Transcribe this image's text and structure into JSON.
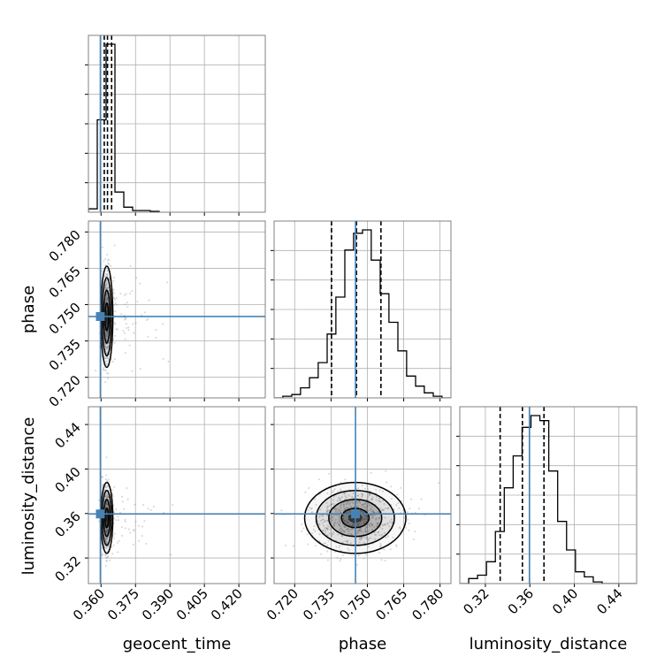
{
  "chart_data": {
    "type": "corner",
    "parameters": [
      "geocent_time",
      "phase",
      "luminosity_distance"
    ],
    "axis_labels": {
      "geocent_time": "geocent_time",
      "phase": "phase",
      "luminosity_distance": "luminosity_distance"
    },
    "ranges": {
      "geocent_time": [
        0.3545,
        0.4315
      ],
      "phase": [
        0.7115,
        0.7845
      ],
      "luminosity_distance": [
        0.297,
        0.456
      ]
    },
    "ticks": {
      "geocent_time": [
        0.36,
        0.375,
        0.39,
        0.405,
        0.42
      ],
      "phase": [
        0.72,
        0.735,
        0.75,
        0.765,
        0.78
      ],
      "luminosity_distance": [
        0.32,
        0.36,
        0.4,
        0.44
      ]
    },
    "tick_labels": {
      "geocent_time": [
        "0.360",
        "0.375",
        "0.390",
        "0.405",
        "0.420"
      ],
      "phase": [
        "0.720",
        "0.735",
        "0.750",
        "0.765",
        "0.780"
      ],
      "luminosity_distance": [
        "0.32",
        "0.36",
        "0.40",
        "0.44"
      ]
    },
    "truths": {
      "geocent_time": 0.3597,
      "phase": 0.7451,
      "luminosity_distance": 0.3596
    },
    "quantiles": {
      "geocent_time": [
        0.3614,
        0.3628,
        0.3646
      ],
      "phase": [
        0.7352,
        0.7455,
        0.7556
      ],
      "luminosity_distance": [
        0.3333,
        0.3533,
        0.3727
      ]
    },
    "means": {
      "geocent_time": 0.3625,
      "phase": 0.745,
      "luminosity_distance": 0.356
    },
    "stds": {
      "geocent_time": 0.0012,
      "phase": 0.0095,
      "luminosity_distance": 0.0145
    },
    "histograms": {
      "geocent_time": {
        "bin_edges": [
          0.3545,
          0.35835,
          0.3622,
          0.36605,
          0.3699,
          0.37375,
          0.3776,
          0.38145,
          0.3853
        ],
        "counts": [
          0.02,
          0.55,
          1.0,
          0.12,
          0.03,
          0.01,
          0.01,
          0.005
        ]
      },
      "phase": {
        "bin_edges": [
          0.7115,
          0.7151,
          0.7188,
          0.7224,
          0.7261,
          0.7297,
          0.7334,
          0.737,
          0.7407,
          0.7443,
          0.748,
          0.7516,
          0.7553,
          0.7589,
          0.7626,
          0.7662,
          0.7699,
          0.7735,
          0.7772,
          0.7808,
          0.7845
        ],
        "counts": [
          0.0,
          0.01,
          0.02,
          0.06,
          0.12,
          0.21,
          0.38,
          0.6,
          0.88,
          0.98,
          1.0,
          0.82,
          0.62,
          0.45,
          0.28,
          0.13,
          0.07,
          0.03,
          0.01,
          0.0
        ]
      },
      "luminosity_distance": {
        "bin_edges": [
          0.297,
          0.305,
          0.313,
          0.321,
          0.329,
          0.337,
          0.345,
          0.353,
          0.361,
          0.369,
          0.377,
          0.385,
          0.393,
          0.401,
          0.409,
          0.417,
          0.425,
          0.433,
          0.441,
          0.449,
          0.456
        ],
        "counts": [
          0.0,
          0.03,
          0.05,
          0.13,
          0.31,
          0.57,
          0.76,
          0.93,
          1.0,
          0.97,
          0.67,
          0.37,
          0.2,
          0.07,
          0.04,
          0.01,
          0.0,
          0.0,
          0.0,
          0.0
        ]
      }
    },
    "grid": true,
    "marker_color": "#4682b4",
    "hist_color": "#000000",
    "scatter_color": "#888888"
  }
}
